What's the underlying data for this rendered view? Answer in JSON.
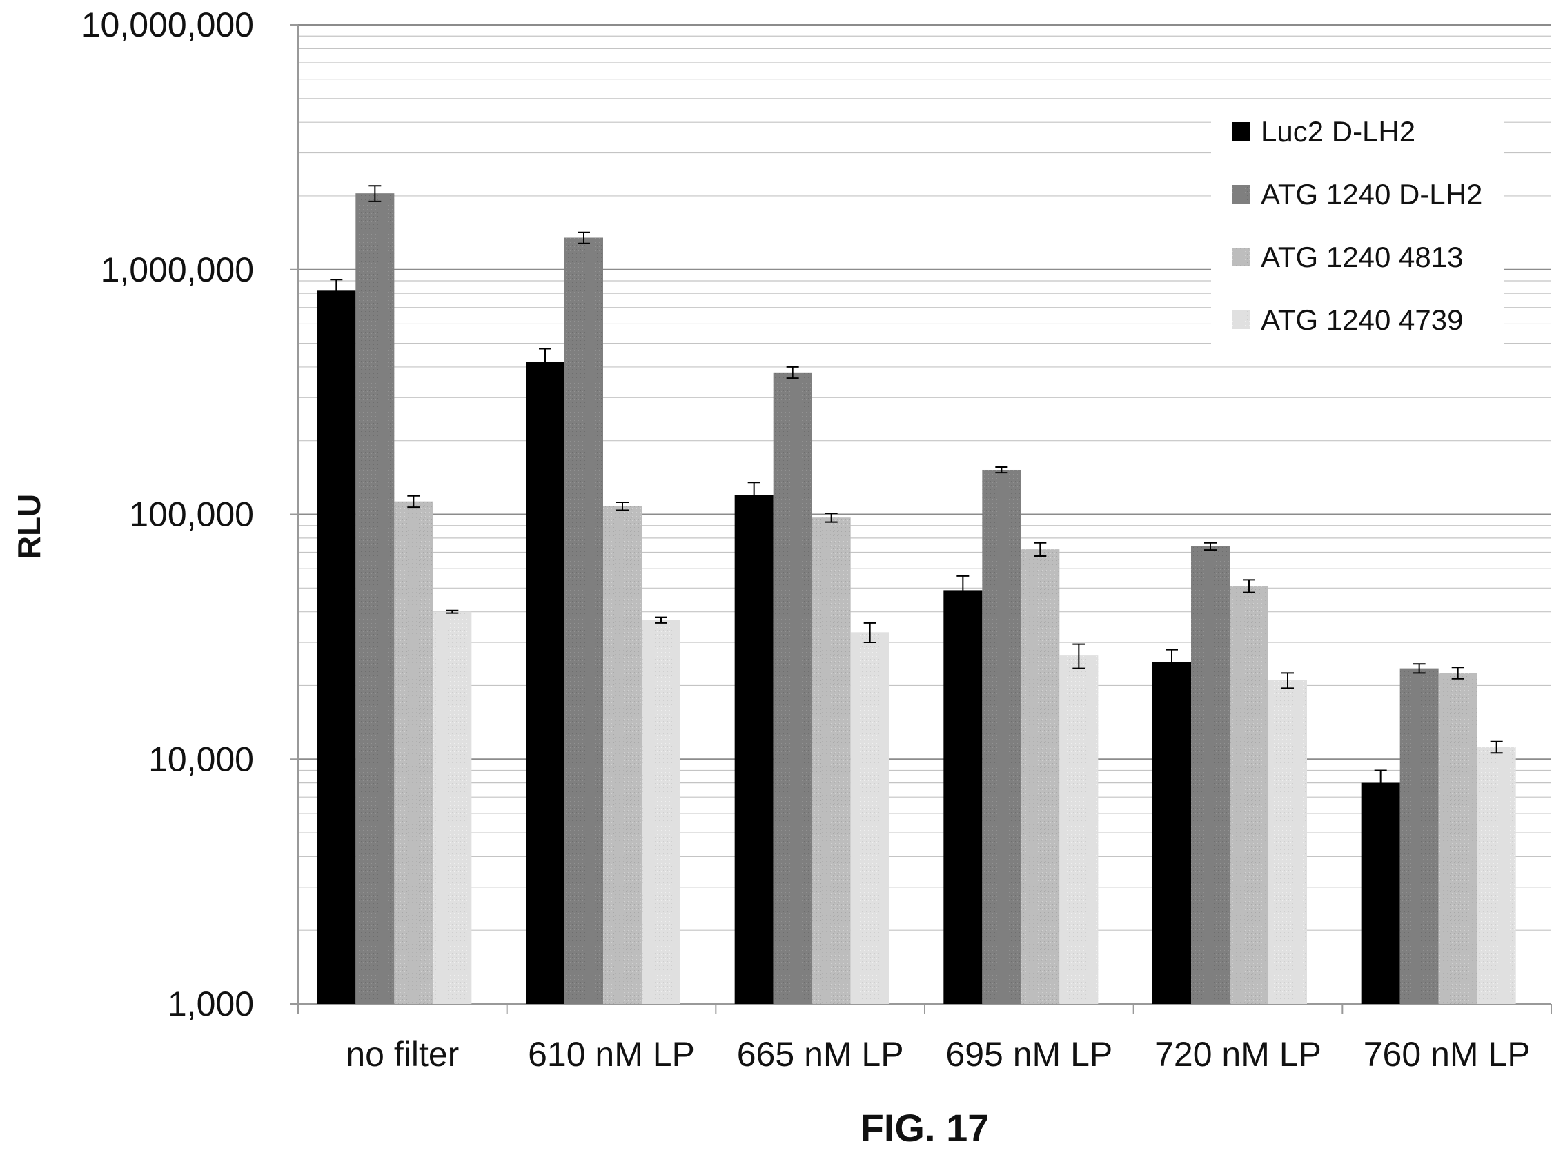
{
  "chart_data": {
    "type": "bar",
    "title": "",
    "xlabel": "",
    "ylabel": "RLU",
    "yscale": "log",
    "ylim": [
      1000,
      10000000
    ],
    "yticks": [
      1000,
      10000,
      100000,
      1000000,
      10000000
    ],
    "ytick_labels": [
      "1,000",
      "10,000",
      "100,000",
      "1,000,000",
      "10,000,000"
    ],
    "grid": true,
    "legend_position": "top-right",
    "categories": [
      "no filter",
      "610 nM LP",
      "665 nM LP",
      "695 nM LP",
      "720 nM LP",
      "760 nM LP"
    ],
    "series": [
      {
        "name": "Luc2 D-LH2",
        "color": "#000000",
        "values": [
          820000,
          420000,
          120000,
          49000,
          25000,
          8000
        ],
        "error": [
          90000,
          55000,
          15000,
          7000,
          3000,
          1000
        ]
      },
      {
        "name": "ATG 1240 D-LH2",
        "color": "#7f7f7f",
        "values": [
          2050000,
          1350000,
          380000,
          152000,
          74000,
          23500
        ],
        "error": [
          150000,
          70000,
          20000,
          4000,
          2500,
          1000
        ]
      },
      {
        "name": "ATG 1240 4813",
        "color": "#bfbfbf",
        "values": [
          113000,
          108000,
          97000,
          72000,
          51000,
          22500
        ],
        "error": [
          6000,
          4000,
          4000,
          4500,
          3000,
          1200
        ]
      },
      {
        "name": "ATG 1240 4739",
        "color": "#dedede",
        "values": [
          40000,
          37000,
          33000,
          26500,
          21000,
          11200
        ],
        "error": [
          500,
          1000,
          3000,
          3000,
          1500,
          600
        ]
      }
    ]
  },
  "figure_label": "FIG. 17"
}
